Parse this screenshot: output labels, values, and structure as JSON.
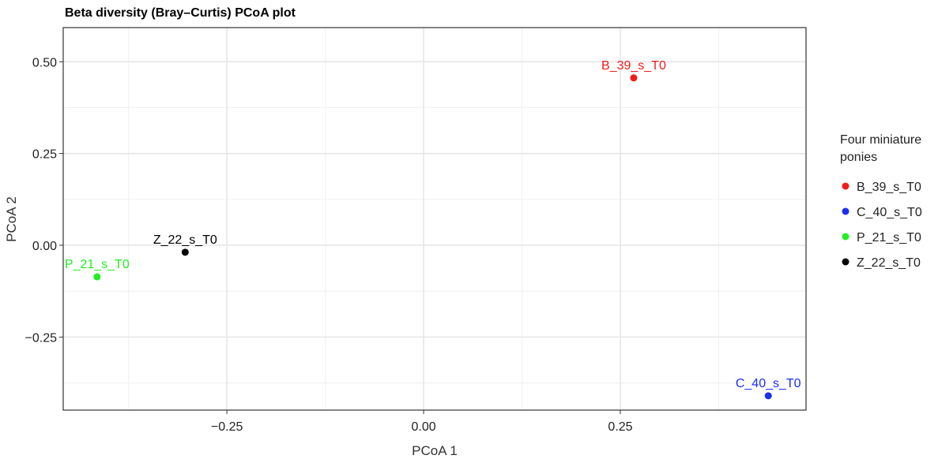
{
  "chart_data": {
    "type": "scatter",
    "title": "Beta diversity (Bray–Curtis) PCoA plot",
    "x_label": "PCoA 1",
    "y_label": "PCoA 2",
    "legend_title": "Four miniature ponies",
    "xlim": [
      -0.458,
      0.486
    ],
    "ylim": [
      -0.449,
      0.593
    ],
    "xticks": [
      {
        "value": -0.25,
        "label": "−0.25"
      },
      {
        "value": 0,
        "label": "0.00"
      },
      0.25
    ],
    "yticks": [
      {
        "value": -0.25,
        "label": "−0.25"
      },
      {
        "value": 0,
        "label": "0.00"
      },
      0.25,
      {
        "value": 0.5,
        "label": "0.50"
      }
    ],
    "grid": true,
    "legend": "right",
    "series": [
      {
        "name": "B_39_s_T0",
        "color": "#f21b1b",
        "x": [
          0.267
        ],
        "y": [
          0.456
        ]
      },
      {
        "name": "C_40_s_T0",
        "color": "#1a2ff0",
        "x": [
          0.438
        ],
        "y": [
          -0.41
        ]
      },
      {
        "name": "P_21_s_T0",
        "color": "#22ee22",
        "x": [
          -0.415
        ],
        "y": [
          -0.086
        ]
      },
      {
        "name": "Z_22_s_T0",
        "color": "#000000",
        "x": [
          -0.303
        ],
        "y": [
          -0.019
        ]
      }
    ]
  }
}
